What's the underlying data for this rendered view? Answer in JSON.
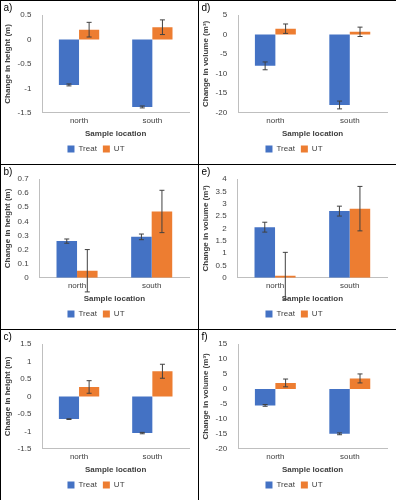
{
  "chart_data": [
    {
      "type": "bar",
      "title": "a)",
      "xlabel": "Sample location",
      "ylabel": "Change in height (m)",
      "categories": [
        "north",
        "south"
      ],
      "series": [
        {
          "name": "Treat",
          "color": "#4472c4",
          "values": [
            -0.93,
            -1.38
          ],
          "errors": [
            0.02,
            0.02
          ]
        },
        {
          "name": "UT",
          "color": "#ed7d31",
          "values": [
            0.2,
            0.25
          ],
          "errors": [
            0.15,
            0.15
          ]
        }
      ],
      "ylim": [
        -1.5,
        0.5
      ],
      "yticks": [
        -1.5,
        -1,
        -0.5,
        0,
        0.5
      ],
      "grid": false,
      "legend": "bottom"
    },
    {
      "type": "bar",
      "title": "b)",
      "xlabel": "Sample location",
      "ylabel": "Change in height (m)",
      "categories": [
        "north",
        "south"
      ],
      "series": [
        {
          "name": "Treat",
          "color": "#4472c4",
          "values": [
            0.26,
            0.29
          ],
          "errors": [
            0.015,
            0.02
          ]
        },
        {
          "name": "UT",
          "color": "#ed7d31",
          "values": [
            0.05,
            0.47
          ],
          "errors": [
            0.15,
            0.15
          ]
        }
      ],
      "ylim": [
        0,
        0.7
      ],
      "yticks": [
        0,
        0.1,
        0.2,
        0.3,
        0.4,
        0.5,
        0.6,
        0.7
      ],
      "grid": false,
      "legend": "bottom"
    },
    {
      "type": "bar",
      "title": "c)",
      "xlabel": "Sample location",
      "ylabel": "Change in height (m)",
      "categories": [
        "north",
        "south"
      ],
      "series": [
        {
          "name": "Treat",
          "color": "#4472c4",
          "values": [
            -0.65,
            -1.05
          ],
          "errors": [
            0.01,
            0.02
          ]
        },
        {
          "name": "UT",
          "color": "#ed7d31",
          "values": [
            0.27,
            0.72
          ],
          "errors": [
            0.18,
            0.2
          ]
        }
      ],
      "ylim": [
        -1.5,
        1.5
      ],
      "yticks": [
        -1.5,
        -1,
        -0.5,
        0,
        0.5,
        1,
        1.5
      ],
      "grid": false,
      "legend": "bottom"
    },
    {
      "type": "bar",
      "title": "d)",
      "xlabel": "Sample location",
      "ylabel": "Change in volume (m³)",
      "categories": [
        "north",
        "south"
      ],
      "series": [
        {
          "name": "Treat",
          "color": "#4472c4",
          "values": [
            -8,
            -18
          ],
          "errors": [
            1,
            1
          ]
        },
        {
          "name": "UT",
          "color": "#ed7d31",
          "values": [
            1.5,
            0.7
          ],
          "errors": [
            1.2,
            1.2
          ]
        }
      ],
      "ylim": [
        -20,
        5
      ],
      "yticks": [
        -20,
        -15,
        -10,
        -5,
        0,
        5
      ],
      "grid": false,
      "legend": "bottom"
    },
    {
      "type": "bar",
      "title": "e)",
      "xlabel": "Sample location",
      "ylabel": "Change in volume (m³)",
      "categories": [
        "north",
        "south"
      ],
      "series": [
        {
          "name": "Treat",
          "color": "#4472c4",
          "values": [
            2.05,
            2.7
          ],
          "errors": [
            0.2,
            0.2
          ]
        },
        {
          "name": "UT",
          "color": "#ed7d31",
          "values": [
            0.08,
            2.8
          ],
          "errors": [
            0.95,
            0.9
          ]
        }
      ],
      "ylim": [
        0,
        4
      ],
      "yticks": [
        0,
        0.5,
        1,
        1.5,
        2,
        2.5,
        3,
        3.5,
        4
      ],
      "grid": false,
      "legend": "bottom"
    },
    {
      "type": "bar",
      "title": "f)",
      "xlabel": "Sample location",
      "ylabel": "Change in volume (m³)",
      "categories": [
        "north",
        "south"
      ],
      "series": [
        {
          "name": "Treat",
          "color": "#4472c4",
          "values": [
            -5.5,
            -15
          ],
          "errors": [
            0.3,
            0.3
          ]
        },
        {
          "name": "UT",
          "color": "#ed7d31",
          "values": [
            2,
            3.5
          ],
          "errors": [
            1.3,
            1.5
          ]
        }
      ],
      "ylim": [
        -20,
        15
      ],
      "yticks": [
        -20,
        -15,
        -10,
        -5,
        0,
        5,
        10,
        15
      ],
      "grid": false,
      "legend": "bottom"
    }
  ]
}
